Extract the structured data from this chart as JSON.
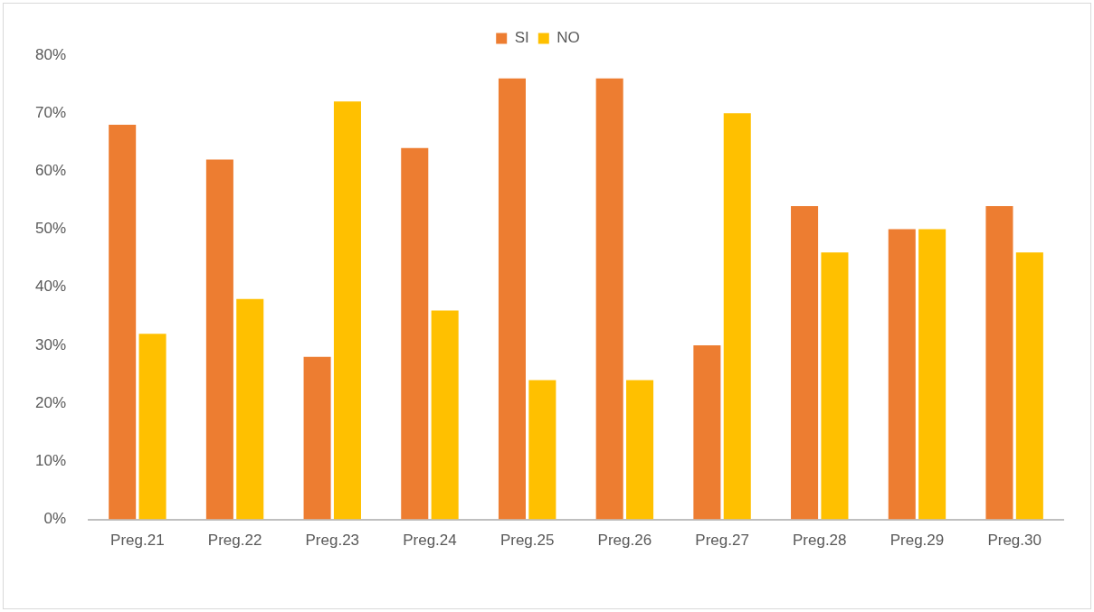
{
  "chart_data": {
    "type": "bar",
    "categories": [
      "Preg.21",
      "Preg.22",
      "Preg.23",
      "Preg.24",
      "Preg.25",
      "Preg.26",
      "Preg.27",
      "Preg.28",
      "Preg.29",
      "Preg.30"
    ],
    "series": [
      {
        "name": "SI",
        "color": "#ed7d31",
        "values": [
          68,
          62,
          28,
          64,
          76,
          76,
          30,
          54,
          50,
          54
        ]
      },
      {
        "name": "NO",
        "color": "#ffc000",
        "values": [
          32,
          38,
          72,
          36,
          24,
          24,
          70,
          46,
          50,
          46
        ]
      }
    ],
    "ylim": [
      0,
      80
    ],
    "yticks": [
      {
        "value": 0,
        "label": "0%"
      },
      {
        "value": 10,
        "label": "10%"
      },
      {
        "value": 20,
        "label": "20%"
      },
      {
        "value": 30,
        "label": "30%"
      },
      {
        "value": 40,
        "label": "40%"
      },
      {
        "value": 50,
        "label": "50%"
      },
      {
        "value": 60,
        "label": "60%"
      },
      {
        "value": 70,
        "label": "70%"
      },
      {
        "value": 80,
        "label": "80%"
      }
    ],
    "grid": false,
    "legend": "top"
  }
}
